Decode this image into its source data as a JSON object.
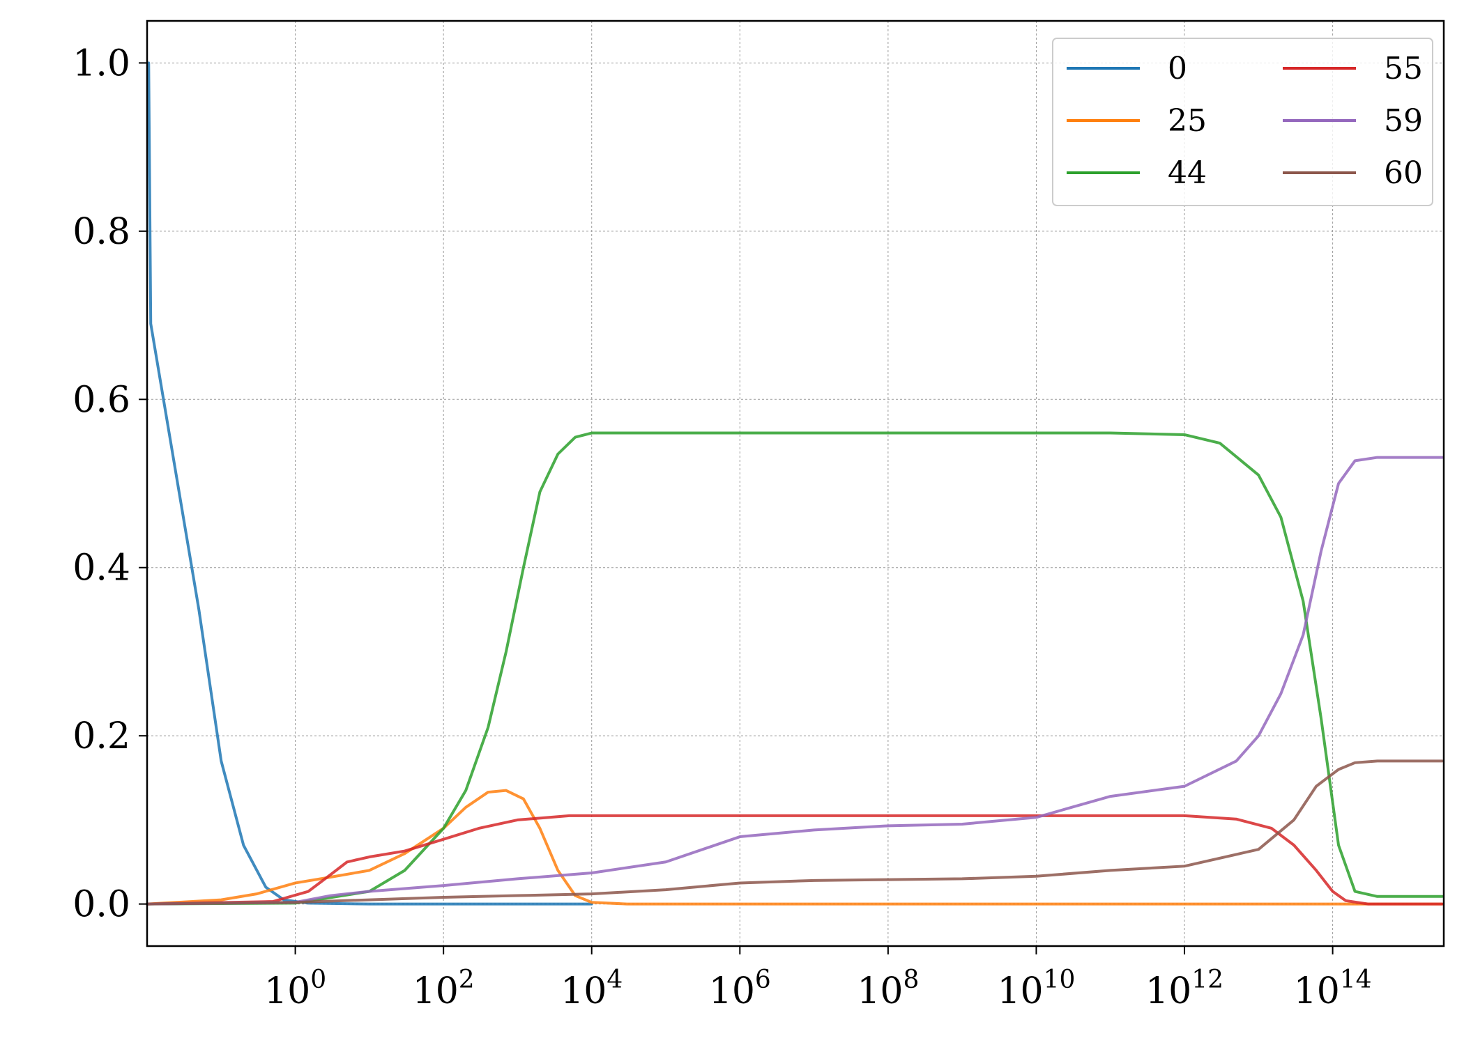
{
  "chart_data": {
    "type": "line",
    "title": "",
    "xlabel": "",
    "ylabel": "",
    "xscale": "log",
    "xlim": [
      0.01,
      3160000000000000.0
    ],
    "ylim": [
      -0.05,
      1.05
    ],
    "grid": true,
    "legend_position": "top-right",
    "legend_columns": 2,
    "x_ticks": [
      {
        "base": "10",
        "exp": "0",
        "value": 1
      },
      {
        "base": "10",
        "exp": "2",
        "value": 100
      },
      {
        "base": "10",
        "exp": "4",
        "value": 10000
      },
      {
        "base": "10",
        "exp": "6",
        "value": 1000000
      },
      {
        "base": "10",
        "exp": "8",
        "value": 100000000
      },
      {
        "base": "10",
        "exp": "10",
        "value": 10000000000
      },
      {
        "base": "10",
        "exp": "12",
        "value": 1000000000000
      },
      {
        "base": "10",
        "exp": "14",
        "value": 100000000000000
      }
    ],
    "y_ticks": [
      "0.0",
      "0.2",
      "0.4",
      "0.6",
      "0.8",
      "1.0"
    ],
    "series": [
      {
        "name": "0",
        "color": "#1f77b4",
        "points": [
          [
            0.0105,
            1.0
          ],
          [
            0.0112,
            0.69
          ],
          [
            0.05,
            0.35
          ],
          [
            0.1,
            0.17
          ],
          [
            0.2,
            0.07
          ],
          [
            0.4,
            0.02
          ],
          [
            0.7,
            0.005
          ],
          [
            1.5,
            0.001
          ],
          [
            10,
            0.0
          ],
          [
            100,
            0.0
          ],
          [
            10000,
            0.0
          ]
        ]
      },
      {
        "name": "25",
        "color": "#ff7f0e",
        "points": [
          [
            0.01,
            0.0
          ],
          [
            0.1,
            0.005
          ],
          [
            0.3,
            0.012
          ],
          [
            1,
            0.025
          ],
          [
            3,
            0.032
          ],
          [
            10,
            0.04
          ],
          [
            30,
            0.06
          ],
          [
            100,
            0.09
          ],
          [
            200,
            0.115
          ],
          [
            400,
            0.133
          ],
          [
            700,
            0.135
          ],
          [
            1200,
            0.125
          ],
          [
            2000,
            0.09
          ],
          [
            3500,
            0.04
          ],
          [
            6000,
            0.01
          ],
          [
            10000,
            0.002
          ],
          [
            30000,
            0.0
          ],
          [
            3000000000000000.0,
            0.0
          ]
        ]
      },
      {
        "name": "44",
        "color": "#2ca02c",
        "points": [
          [
            0.01,
            0.0
          ],
          [
            1,
            0.001
          ],
          [
            10,
            0.015
          ],
          [
            30,
            0.04
          ],
          [
            100,
            0.09
          ],
          [
            200,
            0.135
          ],
          [
            400,
            0.21
          ],
          [
            700,
            0.3
          ],
          [
            1200,
            0.4
          ],
          [
            2000,
            0.49
          ],
          [
            3500,
            0.535
          ],
          [
            6000,
            0.555
          ],
          [
            10000,
            0.56
          ],
          [
            1000000.0,
            0.56
          ],
          [
            10000000000.0,
            0.56
          ],
          [
            100000000000.0,
            0.56
          ],
          [
            1000000000000.0,
            0.558
          ],
          [
            3000000000000.0,
            0.548
          ],
          [
            10000000000000.0,
            0.51
          ],
          [
            20000000000000.0,
            0.46
          ],
          [
            40000000000000.0,
            0.36
          ],
          [
            70000000000000.0,
            0.22
          ],
          [
            120000000000000.0,
            0.07
          ],
          [
            200000000000000.0,
            0.015
          ],
          [
            400000000000000.0,
            0.009
          ],
          [
            3000000000000000.0,
            0.009
          ]
        ]
      },
      {
        "name": "55",
        "color": "#d62728",
        "points": [
          [
            0.01,
            0.0
          ],
          [
            0.5,
            0.003
          ],
          [
            1.5,
            0.015
          ],
          [
            3,
            0.035
          ],
          [
            5,
            0.05
          ],
          [
            10,
            0.056
          ],
          [
            30,
            0.063
          ],
          [
            100,
            0.077
          ],
          [
            300,
            0.09
          ],
          [
            1000,
            0.1
          ],
          [
            5000,
            0.105
          ],
          [
            10000,
            0.105
          ],
          [
            100000000.0,
            0.105
          ],
          [
            1000000000000.0,
            0.105
          ],
          [
            5000000000000.0,
            0.101
          ],
          [
            15000000000000.0,
            0.09
          ],
          [
            30000000000000.0,
            0.07
          ],
          [
            60000000000000.0,
            0.04
          ],
          [
            100000000000000.0,
            0.015
          ],
          [
            150000000000000.0,
            0.004
          ],
          [
            300000000000000.0,
            0.0
          ],
          [
            3000000000000000.0,
            0.0
          ]
        ]
      },
      {
        "name": "59",
        "color": "#9467bd",
        "points": [
          [
            0.01,
            0.0
          ],
          [
            1,
            0.002
          ],
          [
            3,
            0.01
          ],
          [
            10,
            0.015
          ],
          [
            100,
            0.022
          ],
          [
            1000,
            0.03
          ],
          [
            10000,
            0.037
          ],
          [
            100000,
            0.05
          ],
          [
            1000000,
            0.08
          ],
          [
            10000000,
            0.088
          ],
          [
            100000000,
            0.093
          ],
          [
            1000000000.0,
            0.095
          ],
          [
            10000000000.0,
            0.103
          ],
          [
            30000000000.0,
            0.115
          ],
          [
            100000000000.0,
            0.128
          ],
          [
            1000000000000.0,
            0.14
          ],
          [
            5000000000000.0,
            0.17
          ],
          [
            10000000000000.0,
            0.2
          ],
          [
            20000000000000.0,
            0.25
          ],
          [
            40000000000000.0,
            0.32
          ],
          [
            70000000000000.0,
            0.42
          ],
          [
            120000000000000.0,
            0.5
          ],
          [
            200000000000000.0,
            0.527
          ],
          [
            400000000000000.0,
            0.531
          ],
          [
            3000000000000000.0,
            0.531
          ]
        ]
      },
      {
        "name": "60",
        "color": "#8c564b",
        "points": [
          [
            0.01,
            0.0
          ],
          [
            1,
            0.002
          ],
          [
            10,
            0.005
          ],
          [
            100,
            0.008
          ],
          [
            1000,
            0.01
          ],
          [
            10000,
            0.012
          ],
          [
            100000,
            0.017
          ],
          [
            1000000,
            0.025
          ],
          [
            10000000,
            0.028
          ],
          [
            100000000,
            0.029
          ],
          [
            1000000000.0,
            0.03
          ],
          [
            10000000000.0,
            0.033
          ],
          [
            100000000000.0,
            0.04
          ],
          [
            1000000000000.0,
            0.045
          ],
          [
            10000000000000.0,
            0.065
          ],
          [
            30000000000000.0,
            0.1
          ],
          [
            60000000000000.0,
            0.14
          ],
          [
            120000000000000.0,
            0.16
          ],
          [
            200000000000000.0,
            0.168
          ],
          [
            400000000000000.0,
            0.17
          ],
          [
            3000000000000000.0,
            0.17
          ]
        ]
      }
    ]
  }
}
